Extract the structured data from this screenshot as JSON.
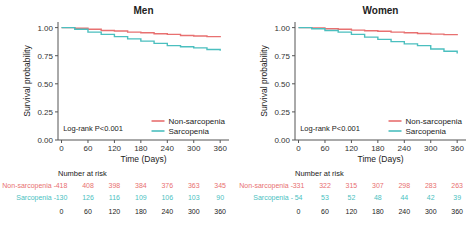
{
  "chart_data": [
    {
      "type": "step",
      "title": "Men",
      "x_label": "Time (Days)",
      "y_label": "Survival probability",
      "annotation": "Log-rank P<0.001",
      "x": [
        0,
        30,
        60,
        90,
        120,
        150,
        180,
        210,
        240,
        270,
        300,
        330,
        360
      ],
      "series": [
        {
          "name": "Non-sarcopenia",
          "color": "#E87070",
          "values": [
            1.0,
            0.995,
            0.985,
            0.975,
            0.97,
            0.96,
            0.955,
            0.945,
            0.94,
            0.93,
            0.925,
            0.92,
            0.915
          ]
        },
        {
          "name": "Sarcopenia",
          "color": "#4BBFBF",
          "values": [
            1.0,
            0.985,
            0.96,
            0.94,
            0.92,
            0.9,
            0.88,
            0.86,
            0.84,
            0.83,
            0.82,
            0.805,
            0.795
          ]
        }
      ],
      "xlim": [
        -8,
        380
      ],
      "ylim": [
        0.0,
        1.05
      ],
      "xticks": [
        0,
        60,
        120,
        180,
        240,
        300,
        360
      ],
      "yticks": [
        {
          "value": 0.0,
          "label": "0.00"
        },
        0.25,
        {
          "value": 0.5,
          "label": "0.50"
        },
        0.75,
        {
          "value": 1.0,
          "label": "1.00"
        }
      ],
      "grid": false,
      "legend": "lower right",
      "risk_table": {
        "title": "Number at risk",
        "x": [
          0,
          60,
          120,
          180,
          240,
          300,
          360
        ],
        "rows": [
          {
            "name": "Non-sarcopenia -",
            "color": "#E87070",
            "values": [
              418,
              408,
              398,
              384,
              376,
              363,
              345
            ]
          },
          {
            "name": "Sarcopenia -",
            "color": "#4BBFBF",
            "values": [
              130,
              126,
              116,
              109,
              106,
              103,
              90
            ]
          }
        ]
      }
    },
    {
      "type": "step",
      "title": "Women",
      "x_label": "Time (Days)",
      "y_label": "Survival probability",
      "annotation": "Log-rank P<0.001",
      "x": [
        0,
        30,
        60,
        90,
        120,
        150,
        180,
        210,
        240,
        270,
        300,
        330,
        360
      ],
      "series": [
        {
          "name": "Non-sarcopenia",
          "color": "#E87070",
          "values": [
            1.0,
            0.997,
            0.99,
            0.985,
            0.978,
            0.972,
            0.968,
            0.96,
            0.955,
            0.948,
            0.942,
            0.938,
            0.932
          ]
        },
        {
          "name": "Sarcopenia",
          "color": "#4BBFBF",
          "values": [
            1.0,
            0.99,
            0.975,
            0.96,
            0.94,
            0.915,
            0.895,
            0.875,
            0.855,
            0.84,
            0.81,
            0.79,
            0.77
          ]
        }
      ],
      "xlim": [
        -8,
        380
      ],
      "ylim": [
        0.0,
        1.05
      ],
      "xticks": [
        0,
        60,
        120,
        180,
        240,
        300,
        360
      ],
      "yticks": [
        {
          "value": 0.0,
          "label": "0.00"
        },
        0.25,
        {
          "value": 0.5,
          "label": "0.50"
        },
        0.75,
        {
          "value": 1.0,
          "label": "1.00"
        }
      ],
      "grid": false,
      "legend": "lower right",
      "risk_table": {
        "title": "Number at risk",
        "x": [
          0,
          60,
          120,
          180,
          240,
          300,
          360
        ],
        "rows": [
          {
            "name": "Non-sarcopenia -",
            "color": "#E87070",
            "values": [
              331,
              322,
              315,
              307,
              298,
              283,
              263
            ]
          },
          {
            "name": "Sarcopenia -",
            "color": "#4BBFBF",
            "values": [
              54,
              53,
              52,
              48,
              44,
              42,
              39
            ]
          }
        ]
      }
    }
  ]
}
